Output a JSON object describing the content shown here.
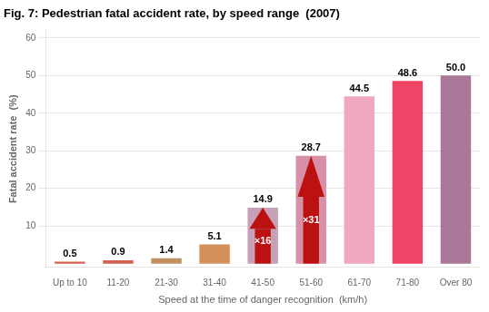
{
  "chart_data": {
    "type": "bar",
    "title": "Fig. 7: Pedestrian fatal accident rate, by speed range  (2007)",
    "ylabel": "Fatal accident rate  (%)",
    "xlabel": "Speed at the time of danger recognition  (km/h)",
    "categories": [
      "Up to 10",
      "11-20",
      "21-30",
      "31-40",
      "41-50",
      "51-60",
      "61-70",
      "71-80",
      "Over 80"
    ],
    "values": [
      0.5,
      0.9,
      1.4,
      5.1,
      14.9,
      28.7,
      44.5,
      48.6,
      50.0
    ],
    "value_labels": [
      "0.5",
      "0.9",
      "1.4",
      "5.1",
      "14.9",
      "28.7",
      "44.5",
      "48.6",
      "50.0"
    ],
    "colors": [
      "#d46050",
      "#d46050",
      "#c09060",
      "#d4905a",
      "#c8a0b8",
      "#d890a8",
      "#f0a8c0",
      "#ee4466",
      "#aa7799"
    ],
    "ylim": [
      -1,
      62
    ],
    "yticks": [
      10,
      20,
      30,
      40,
      50,
      60
    ],
    "grid": true,
    "data_labels": true,
    "annotations": [
      {
        "text": "×16",
        "category": "41-50",
        "color": "#bb1111"
      },
      {
        "text": "×31",
        "category": "51-60",
        "color": "#bb1111"
      }
    ]
  }
}
